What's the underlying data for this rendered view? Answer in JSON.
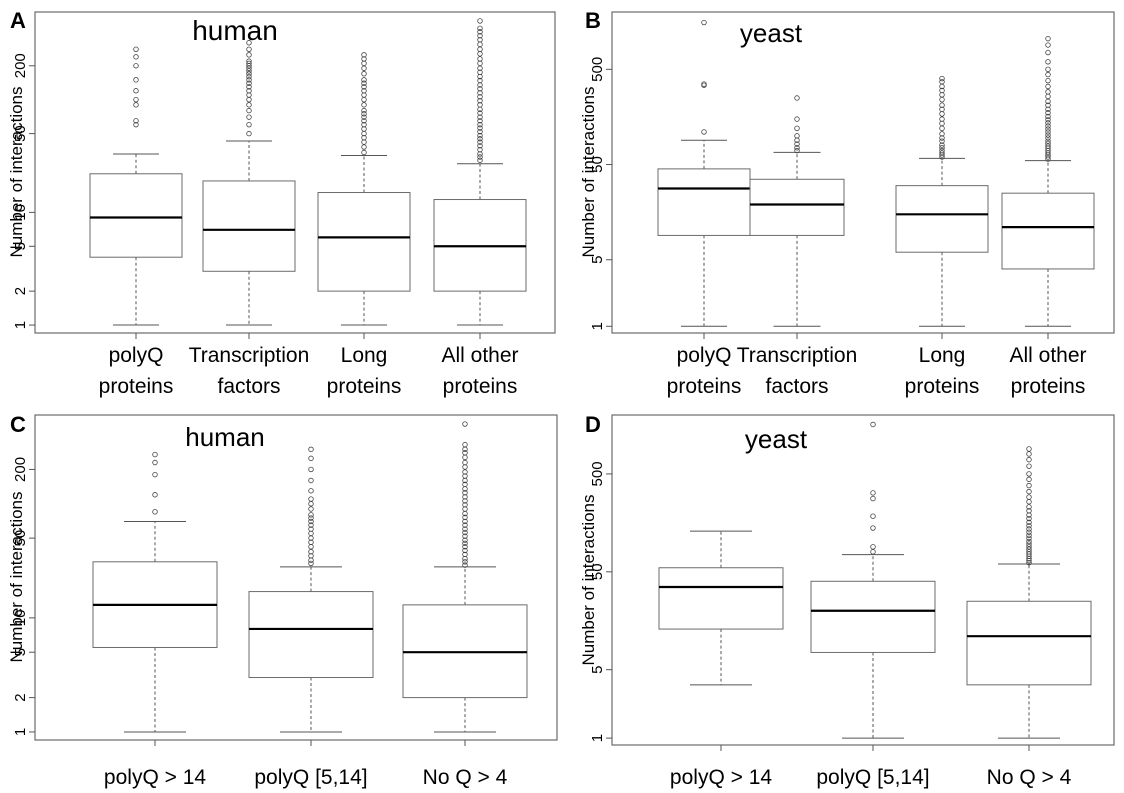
{
  "chart_data": [
    {
      "type": "box",
      "panel_label": "A",
      "title": "human",
      "ylabel": "Number of interactions",
      "scale": "log",
      "y_ticks": [
        1,
        2,
        5,
        10,
        50,
        200
      ],
      "ylim": [
        0.85,
        600
      ],
      "categories": [
        "polyQ proteins",
        "Transcription factors",
        "Long proteins",
        "All other proteins"
      ],
      "category_lines": [
        [
          "polyQ",
          "proteins"
        ],
        [
          "Transcription",
          "factors"
        ],
        [
          "Long",
          "proteins"
        ],
        [
          "All other",
          "proteins"
        ]
      ],
      "boxes": [
        {
          "whisker_low": 1,
          "q1": 4,
          "median": 9,
          "q3": 22,
          "whisker_high": 33,
          "outliers": [
            60,
            65,
            90,
            100,
            120,
            150,
            200,
            240,
            280
          ]
        },
        {
          "whisker_low": 1,
          "q1": 3,
          "median": 7,
          "q3": 19,
          "whisker_high": 43,
          "outliers": [
            50,
            60,
            70,
            80,
            90,
            100,
            110,
            120,
            130,
            140,
            150,
            160,
            170,
            180,
            190,
            200,
            210,
            220,
            250,
            280,
            320
          ]
        },
        {
          "whisker_low": 1,
          "q1": 2,
          "median": 6,
          "q3": 15,
          "whisker_high": 32,
          "outliers": [
            34,
            38,
            42,
            46,
            50,
            55,
            60,
            65,
            70,
            75,
            80,
            90,
            100,
            110,
            120,
            130,
            140,
            150,
            170,
            190,
            210,
            230,
            250
          ]
        },
        {
          "whisker_low": 1,
          "q1": 2,
          "median": 5,
          "q3": 13,
          "whisker_high": 27,
          "outliers": [
            29,
            31,
            33,
            36,
            39,
            42,
            45,
            48,
            52,
            56,
            60,
            65,
            70,
            76,
            82,
            90,
            98,
            106,
            115,
            125,
            135,
            148,
            160,
            175,
            190,
            210,
            230,
            255,
            280,
            310,
            340,
            370,
            400,
            430,
            500
          ]
        }
      ]
    },
    {
      "type": "box",
      "panel_label": "B",
      "title": "yeast",
      "ylabel": "Number of interactions",
      "scale": "log",
      "y_ticks": [
        1,
        5,
        50,
        500
      ],
      "ylim": [
        0.85,
        2000
      ],
      "categories": [
        "polyQ proteins",
        "Transcription factors",
        "Long proteins",
        "All other proteins"
      ],
      "category_lines": [
        [
          "polyQ",
          "proteins"
        ],
        [
          "Transcription",
          "factors"
        ],
        [
          "Long",
          "proteins"
        ],
        [
          "All other",
          "proteins"
        ]
      ],
      "boxes": [
        {
          "whisker_low": 1,
          "q1": 9,
          "median": 28,
          "q3": 45,
          "whisker_high": 90,
          "outliers": [
            110,
            340,
            350,
            1550
          ]
        },
        {
          "whisker_low": 1,
          "q1": 9,
          "median": 19,
          "q3": 35,
          "whisker_high": 67,
          "outliers": [
            70,
            75,
            82,
            90,
            100,
            120,
            150,
            250
          ]
        },
        {
          "whisker_low": 1,
          "q1": 6,
          "median": 15,
          "q3": 30,
          "whisker_high": 58,
          "outliers": [
            60,
            63,
            66,
            70,
            75,
            80,
            88,
            95,
            105,
            120,
            135,
            150,
            170,
            190,
            210,
            240,
            270,
            300,
            330,
            370,
            400
          ]
        },
        {
          "whisker_low": 1,
          "q1": 4,
          "median": 11,
          "q3": 25,
          "whisker_high": 55,
          "outliers": [
            57,
            60,
            63,
            66,
            70,
            74,
            78,
            83,
            88,
            95,
            102,
            110,
            118,
            127,
            137,
            148,
            160,
            175,
            190,
            210,
            230,
            260,
            290,
            330,
            380,
            440,
            500,
            600,
            750,
            900,
            1050
          ]
        }
      ]
    },
    {
      "type": "box",
      "panel_label": "C",
      "title": "human",
      "ylabel": "Number of interactions",
      "scale": "log",
      "y_ticks": [
        1,
        2,
        5,
        10,
        50,
        200
      ],
      "ylim": [
        0.85,
        600
      ],
      "categories": [
        "polyQ > 14",
        "polyQ [5,14]",
        "No Q > 4"
      ],
      "category_lines": [
        [
          "polyQ > 14"
        ],
        [
          "polyQ [5,14]"
        ],
        [
          "No Q > 4"
        ]
      ],
      "boxes": [
        {
          "whisker_low": 1,
          "q1": 5.5,
          "median": 13,
          "q3": 31,
          "whisker_high": 70,
          "outliers": [
            85,
            120,
            180,
            230,
            270
          ]
        },
        {
          "whisker_low": 1,
          "q1": 3,
          "median": 8,
          "q3": 17,
          "whisker_high": 28,
          "outliers": [
            30,
            32,
            35,
            38,
            42,
            46,
            50,
            55,
            60,
            65,
            70,
            75,
            80,
            90,
            100,
            110,
            130,
            160,
            200,
            250,
            300
          ]
        },
        {
          "whisker_low": 1,
          "q1": 2,
          "median": 5,
          "q3": 13,
          "whisker_high": 28,
          "outliers": [
            29,
            31,
            33,
            36,
            39,
            42,
            45,
            48,
            52,
            56,
            60,
            65,
            70,
            76,
            82,
            90,
            98,
            106,
            115,
            125,
            135,
            148,
            160,
            175,
            190,
            210,
            230,
            255,
            280,
            300,
            330,
            500
          ]
        }
      ]
    },
    {
      "type": "box",
      "panel_label": "D",
      "title": "yeast",
      "ylabel": "Number of interactions",
      "scale": "log",
      "y_ticks": [
        1,
        5,
        50,
        500
      ],
      "ylim": [
        0.85,
        2000
      ],
      "categories": [
        "polyQ > 14",
        "polyQ [5,14]",
        "No Q > 4"
      ],
      "category_lines": [
        [
          "polyQ > 14"
        ],
        [
          "polyQ [5,14]"
        ],
        [
          "No Q > 4"
        ]
      ],
      "boxes": [
        {
          "whisker_low": 3.5,
          "q1": 13,
          "median": 35,
          "q3": 55,
          "whisker_high": 130
        },
        {
          "whisker_low": 1,
          "q1": 7.5,
          "median": 20,
          "q3": 40,
          "whisker_high": 75,
          "outliers": [
            80,
            90,
            140,
            185,
            280,
            320,
            1600
          ]
        },
        {
          "whisker_low": 1,
          "q1": 3.5,
          "median": 11,
          "q3": 25,
          "whisker_high": 60,
          "outliers": [
            62,
            65,
            68,
            72,
            76,
            80,
            85,
            90,
            96,
            102,
            110,
            118,
            127,
            137,
            148,
            160,
            175,
            190,
            210,
            230,
            260,
            290,
            330,
            380,
            440,
            500,
            600,
            700,
            800,
            900
          ]
        }
      ]
    }
  ]
}
